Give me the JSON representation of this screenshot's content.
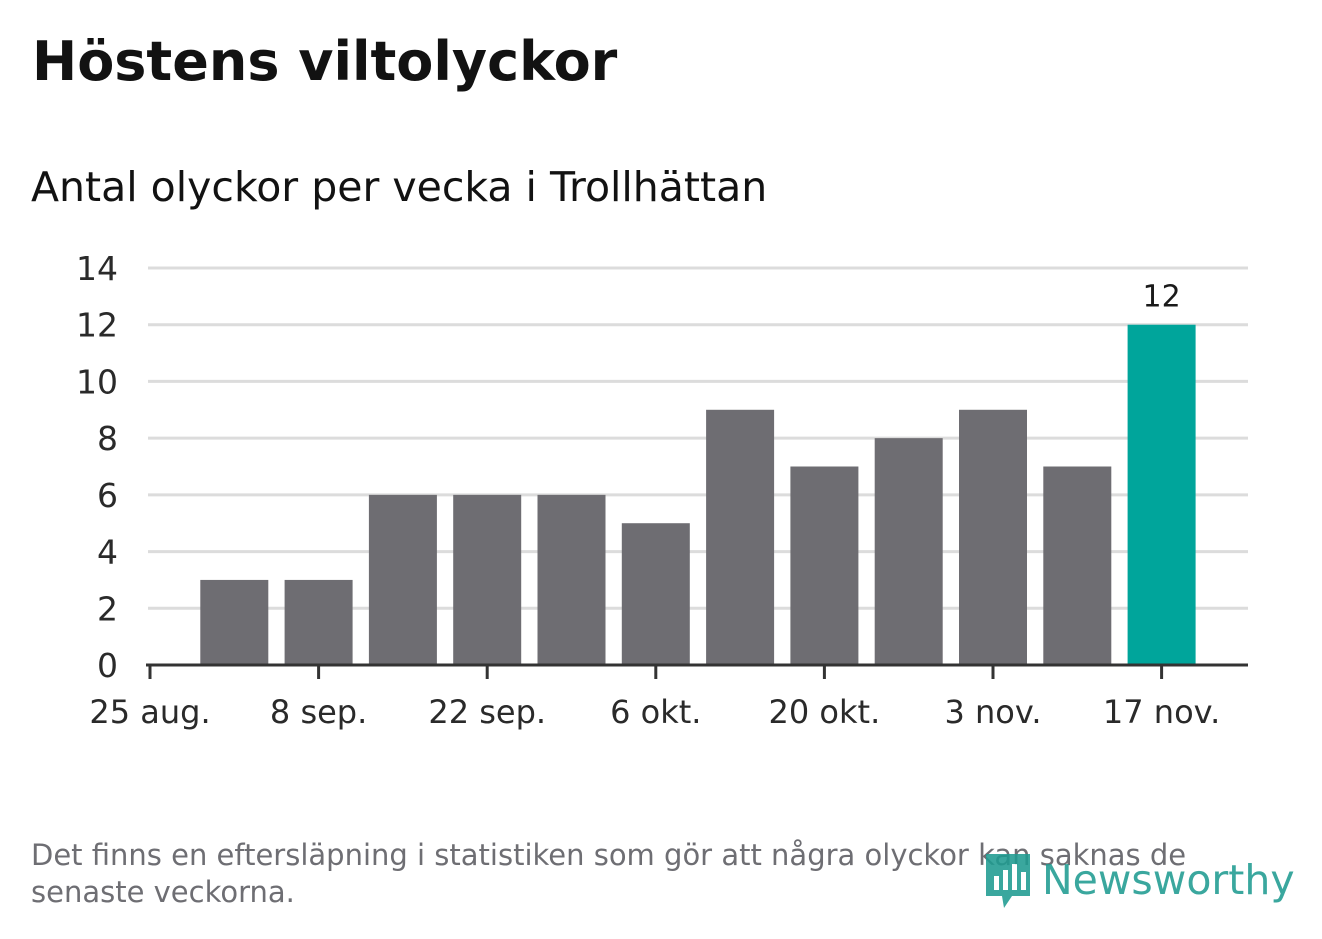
{
  "title": "Höstens viltolyckor",
  "subtitle": "Antal olyckor per vecka i Trollhättan",
  "footnote": "Det finns en eftersläpning i statistiken som gör att några olyckor kan saknas de senaste veckorna.",
  "logo": {
    "text": "Newsworthy",
    "icon": "newsworthy-logo-icon"
  },
  "colors": {
    "bar": "#6e6d72",
    "highlight": "#00a59b",
    "grid": "#dcdcdc",
    "axis": "#333333"
  },
  "chart_data": {
    "type": "bar",
    "x_tick_labels": [
      "25 aug.",
      "8 sep.",
      "22 sep.",
      "6 okt.",
      "20 okt.",
      "3 nov.",
      "17 nov."
    ],
    "y_ticks": [
      0,
      2,
      4,
      6,
      8,
      10,
      12,
      14
    ],
    "ylim": [
      0,
      14
    ],
    "values": [
      3,
      3,
      6,
      6,
      6,
      5,
      9,
      7,
      8,
      9,
      7,
      12
    ],
    "highlight_index": 11,
    "data_labels": [
      {
        "index": 11,
        "text": "12"
      }
    ],
    "grid": true,
    "legend": "none"
  }
}
